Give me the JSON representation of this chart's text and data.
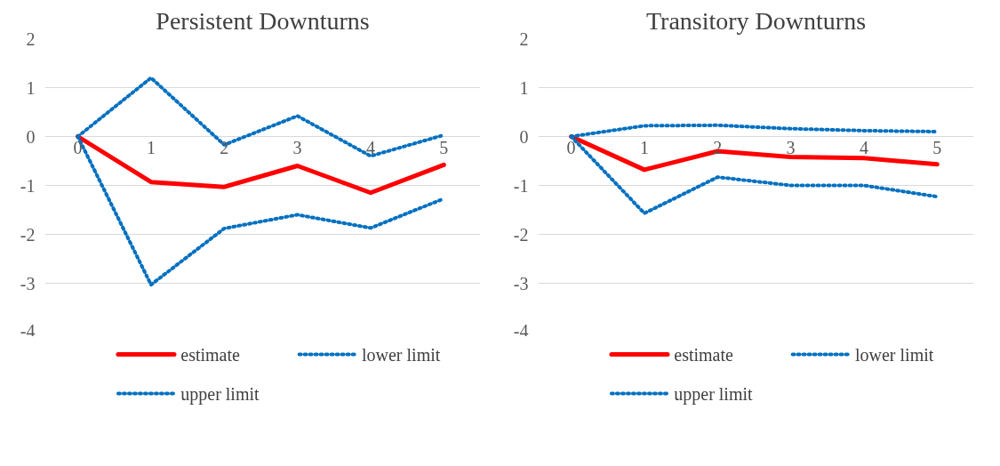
{
  "chart_data": [
    {
      "type": "line",
      "title": "Persistent Downturns",
      "categories": [
        "0",
        "1",
        "2",
        "3",
        "4",
        "5"
      ],
      "ylim": [
        -4,
        2
      ],
      "yticks": [
        -4,
        -3,
        -2,
        -1,
        0,
        1,
        2
      ],
      "grid": "y",
      "legend": "bottom",
      "series": [
        {
          "name": "estimate",
          "color": "#ff0000",
          "line_style": "solid",
          "values": [
            0,
            -0.93,
            -1.03,
            -0.6,
            -1.15,
            -0.58
          ]
        },
        {
          "name": "lower limit",
          "color": "#0070c0",
          "line_style": "dotted",
          "values": [
            0,
            -3.03,
            -1.88,
            -1.6,
            -1.87,
            -1.27
          ]
        },
        {
          "name": "upper limit",
          "color": "#0070c0",
          "line_style": "dotted",
          "values": [
            0,
            1.2,
            -0.17,
            0.42,
            -0.4,
            0.03
          ]
        }
      ]
    },
    {
      "type": "line",
      "title": "Transitory Downturns",
      "categories": [
        "0",
        "1",
        "2",
        "3",
        "4",
        "5"
      ],
      "ylim": [
        -4,
        2
      ],
      "yticks": [
        -4,
        -3,
        -2,
        -1,
        0,
        1,
        2
      ],
      "grid": "y",
      "legend": "bottom",
      "series": [
        {
          "name": "estimate",
          "color": "#ff0000",
          "line_style": "solid",
          "values": [
            0,
            -0.68,
            -0.3,
            -0.42,
            -0.44,
            -0.57
          ]
        },
        {
          "name": "lower limit",
          "color": "#0070c0",
          "line_style": "dotted",
          "values": [
            0,
            -1.57,
            -0.83,
            -1.0,
            -1.0,
            -1.23
          ]
        },
        {
          "name": "upper limit",
          "color": "#0070c0",
          "line_style": "dotted",
          "values": [
            0,
            0.22,
            0.23,
            0.16,
            0.12,
            0.1
          ]
        }
      ]
    }
  ]
}
